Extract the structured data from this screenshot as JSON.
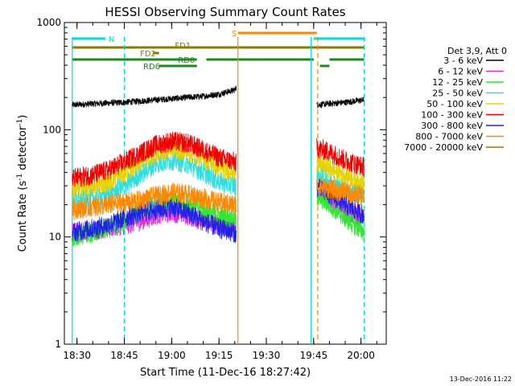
{
  "chart_data": {
    "type": "line",
    "title": "HESSI Observing Summary Count Rates",
    "xlabel": "Start Time (11-Dec-16 18:27:42)",
    "ylabel_main": "Count Rate (s",
    "ylabel_sup1": "-1",
    "ylabel_mid": " detector",
    "ylabel_sup2": "-1",
    "ylabel_end": ")",
    "footer_date": "13-Dec-2016 11:22",
    "legend_header": "Det 3,9, Att 0",
    "ylim": [
      1,
      1000
    ],
    "yscale": "log",
    "xlim": [
      "18:26",
      "20:08"
    ],
    "x_ticks": [
      {
        "t": 30,
        "label": "18:30"
      },
      {
        "t": 45,
        "label": "18:45"
      },
      {
        "t": 60,
        "label": "19:00"
      },
      {
        "t": 75,
        "label": "19:15"
      },
      {
        "t": 90,
        "label": "19:30"
      },
      {
        "t": 105,
        "label": "19:45"
      },
      {
        "t": 120,
        "label": "20:00"
      }
    ],
    "y_ticks": [
      {
        "v": 1,
        "label": "1"
      },
      {
        "v": 10,
        "label": "10"
      },
      {
        "v": 100,
        "label": "100"
      },
      {
        "v": 1000,
        "label": "1000"
      }
    ],
    "series": [
      {
        "name": "3 - 6 keV",
        "color": "#000000",
        "seg1": [
          [
            28.5,
            170
          ],
          [
            35,
            175
          ],
          [
            45,
            180
          ],
          [
            50,
            185
          ],
          [
            55,
            190
          ],
          [
            60,
            195
          ],
          [
            65,
            200
          ],
          [
            70,
            205
          ],
          [
            75,
            215
          ],
          [
            80,
            235
          ],
          [
            80.5,
            250
          ]
        ],
        "seg2": [
          [
            106,
            170
          ],
          [
            110,
            175
          ],
          [
            115,
            180
          ],
          [
            121,
            190
          ]
        ]
      },
      {
        "name": "6 - 12 keV",
        "color": "#d633d6",
        "seg1": [
          [
            28.5,
            11
          ],
          [
            40,
            12
          ],
          [
            50,
            14
          ],
          [
            55,
            16
          ],
          [
            60,
            17
          ],
          [
            65,
            16
          ],
          [
            70,
            14
          ],
          [
            75,
            13
          ],
          [
            80,
            12
          ],
          [
            80.5,
            10
          ]
        ],
        "seg2": [
          [
            106,
            28
          ],
          [
            110,
            22
          ],
          [
            115,
            17
          ],
          [
            121,
            15
          ]
        ]
      },
      {
        "name": "12 - 25 keV",
        "color": "#33e633",
        "seg1": [
          [
            28.5,
            10
          ],
          [
            35,
            11
          ],
          [
            40,
            12
          ],
          [
            45,
            14
          ],
          [
            50,
            17
          ],
          [
            55,
            20
          ],
          [
            60,
            22
          ],
          [
            65,
            21
          ],
          [
            70,
            18
          ],
          [
            75,
            16
          ],
          [
            80,
            15
          ],
          [
            80.5,
            14
          ]
        ],
        "seg2": [
          [
            106,
            24
          ],
          [
            110,
            20
          ],
          [
            115,
            15
          ],
          [
            121,
            11
          ]
        ]
      },
      {
        "name": "25 - 50 keV",
        "color": "#33dddd",
        "seg1": [
          [
            28.5,
            22
          ],
          [
            35,
            23
          ],
          [
            40,
            25
          ],
          [
            45,
            30
          ],
          [
            50,
            38
          ],
          [
            55,
            48
          ],
          [
            60,
            52
          ],
          [
            65,
            48
          ],
          [
            70,
            40
          ],
          [
            75,
            33
          ],
          [
            80,
            30
          ],
          [
            80.5,
            28
          ]
        ],
        "seg2": [
          [
            106,
            38
          ],
          [
            110,
            34
          ],
          [
            115,
            28
          ],
          [
            121,
            25
          ]
        ]
      },
      {
        "name": "50 - 100 keV",
        "color": "#e6d200",
        "seg1": [
          [
            28.5,
            28
          ],
          [
            35,
            30
          ],
          [
            40,
            33
          ],
          [
            45,
            40
          ],
          [
            50,
            50
          ],
          [
            55,
            60
          ],
          [
            60,
            68
          ],
          [
            65,
            62
          ],
          [
            70,
            55
          ],
          [
            75,
            45
          ],
          [
            80,
            40
          ],
          [
            80.5,
            38
          ]
        ],
        "seg2": [
          [
            106,
            48
          ],
          [
            110,
            44
          ],
          [
            115,
            38
          ],
          [
            121,
            32
          ]
        ]
      },
      {
        "name": "100 - 300 keV",
        "color": "#ee0000",
        "seg1": [
          [
            28.5,
            35
          ],
          [
            35,
            38
          ],
          [
            40,
            42
          ],
          [
            45,
            50
          ],
          [
            50,
            60
          ],
          [
            55,
            72
          ],
          [
            60,
            78
          ],
          [
            65,
            75
          ],
          [
            70,
            65
          ],
          [
            75,
            55
          ],
          [
            80,
            50
          ],
          [
            80.5,
            48
          ]
        ],
        "seg2": [
          [
            106,
            68
          ],
          [
            110,
            62
          ],
          [
            115,
            52
          ],
          [
            121,
            45
          ]
        ]
      },
      {
        "name": "300 - 800 keV",
        "color": "#2222e6",
        "seg1": [
          [
            28.5,
            11
          ],
          [
            35,
            12
          ],
          [
            40,
            13
          ],
          [
            45,
            15
          ],
          [
            50,
            17
          ],
          [
            55,
            18
          ],
          [
            60,
            19
          ],
          [
            65,
            17
          ],
          [
            70,
            14
          ],
          [
            75,
            12
          ],
          [
            80,
            11
          ],
          [
            80.5,
            10
          ]
        ],
        "seg2": [
          [
            106,
            29
          ],
          [
            110,
            25
          ],
          [
            115,
            20
          ],
          [
            121,
            16
          ]
        ]
      },
      {
        "name": "800 - 7000 keV",
        "color": "#ff8800",
        "seg1": [
          [
            28.5,
            18
          ],
          [
            35,
            19
          ],
          [
            40,
            20
          ],
          [
            45,
            21
          ],
          [
            50,
            22
          ],
          [
            55,
            24
          ],
          [
            60,
            26
          ],
          [
            65,
            25
          ],
          [
            70,
            23
          ],
          [
            75,
            21
          ],
          [
            80,
            20
          ],
          [
            80.5,
            20
          ]
        ],
        "seg2": [
          [
            106,
            30
          ],
          [
            110,
            28
          ],
          [
            115,
            26
          ],
          [
            121,
            24
          ]
        ]
      },
      {
        "name": "7000 - 20000 keV",
        "color": "#8b7b00",
        "seg1": [],
        "seg2": []
      }
    ],
    "flag_bars": [
      {
        "label": "N",
        "color": "#00dddd",
        "segments": [
          [
            28.5,
            39
          ],
          [
            105,
            121
          ]
        ]
      },
      {
        "label": "S",
        "color": "#ff8800",
        "segments": [
          [
            81,
            106
          ]
        ]
      },
      {
        "label": "FD1",
        "color": "#8b7b00",
        "segments": [
          [
            28.5,
            121
          ]
        ]
      },
      {
        "label": "FD2",
        "color": "#8b7b00",
        "segments": [
          [
            54,
            56
          ]
        ]
      },
      {
        "label": "RD0",
        "color": "#1a8a1a",
        "segments": [
          [
            28.5,
            68
          ],
          [
            71,
            105
          ],
          [
            110,
            121
          ]
        ]
      },
      {
        "label": "RD6",
        "color": "#1a8a1a",
        "segments": [
          [
            56,
            68
          ],
          [
            107,
            110
          ]
        ]
      }
    ],
    "vlines": [
      {
        "t": 28.5,
        "style": "solid",
        "color": "#00dddd"
      },
      {
        "t": 45,
        "style": "dashed",
        "color": "#00dddd"
      },
      {
        "t": 81,
        "style": "solid",
        "color": "#ff8800"
      },
      {
        "t": 104.2,
        "style": "solid",
        "color": "#00dddd"
      },
      {
        "t": 106.3,
        "style": "dashed",
        "color": "#ff8800"
      },
      {
        "t": 121,
        "style": "dashed",
        "color": "#00dddd"
      }
    ]
  }
}
